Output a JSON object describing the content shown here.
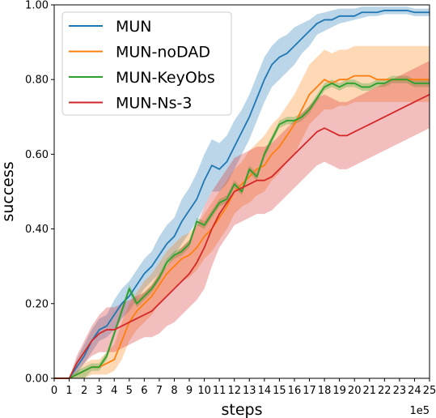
{
  "chart_data": {
    "type": "line",
    "xlabel": "steps",
    "ylabel": "success",
    "x_scale_label": "1e5",
    "xlim": [
      0,
      25
    ],
    "ylim": [
      0,
      1.0
    ],
    "x_ticks": [
      0,
      1,
      2,
      3,
      4,
      5,
      6,
      7,
      8,
      9,
      10,
      11,
      12,
      13,
      14,
      15,
      16,
      17,
      18,
      19,
      20,
      21,
      22,
      23,
      24,
      25
    ],
    "y_ticks": [
      0.0,
      0.2,
      0.4,
      0.6,
      0.8,
      1.0
    ],
    "y_tick_labels": [
      "0.00",
      "0.20",
      "0.40",
      "0.60",
      "0.80",
      "1.00"
    ],
    "grid": false,
    "legend_position": "top-left",
    "x": [
      0,
      0.5,
      1,
      1.5,
      2,
      2.5,
      3,
      3.5,
      4,
      4.5,
      5,
      5.5,
      6,
      6.5,
      7,
      7.5,
      8,
      8.5,
      9,
      9.5,
      10,
      10.5,
      11,
      11.5,
      12,
      12.5,
      13,
      13.5,
      14,
      14.5,
      15,
      15.5,
      16,
      16.5,
      17,
      17.5,
      18,
      18.5,
      19,
      19.5,
      20,
      20.5,
      21,
      21.5,
      22,
      22.5,
      23,
      23.5,
      24,
      24.5,
      25
    ],
    "series": [
      {
        "name": "MUN",
        "color": "#1f77b4",
        "values": [
          0,
          0,
          0,
          0.03,
          0.06,
          0.1,
          0.13,
          0.14,
          0.17,
          0.2,
          0.22,
          0.25,
          0.28,
          0.3,
          0.33,
          0.36,
          0.38,
          0.42,
          0.45,
          0.48,
          0.53,
          0.57,
          0.56,
          0.58,
          0.62,
          0.66,
          0.7,
          0.75,
          0.8,
          0.84,
          0.86,
          0.87,
          0.89,
          0.91,
          0.93,
          0.95,
          0.96,
          0.96,
          0.97,
          0.97,
          0.97,
          0.98,
          0.98,
          0.98,
          0.985,
          0.985,
          0.985,
          0.985,
          0.98,
          0.98,
          0.98
        ],
        "lower": [
          0,
          0,
          0,
          0.01,
          0.04,
          0.07,
          0.1,
          0.11,
          0.13,
          0.16,
          0.18,
          0.21,
          0.24,
          0.26,
          0.28,
          0.31,
          0.33,
          0.36,
          0.39,
          0.42,
          0.46,
          0.5,
          0.5,
          0.52,
          0.56,
          0.6,
          0.64,
          0.69,
          0.74,
          0.78,
          0.8,
          0.82,
          0.84,
          0.87,
          0.89,
          0.92,
          0.93,
          0.94,
          0.95,
          0.955,
          0.96,
          0.965,
          0.97,
          0.97,
          0.975,
          0.975,
          0.975,
          0.975,
          0.97,
          0.97,
          0.97
        ],
        "upper": [
          0,
          0,
          0,
          0.05,
          0.09,
          0.13,
          0.16,
          0.17,
          0.21,
          0.24,
          0.26,
          0.29,
          0.32,
          0.34,
          0.38,
          0.41,
          0.43,
          0.48,
          0.51,
          0.55,
          0.6,
          0.64,
          0.63,
          0.65,
          0.69,
          0.72,
          0.76,
          0.81,
          0.86,
          0.89,
          0.91,
          0.92,
          0.94,
          0.95,
          0.96,
          0.975,
          0.98,
          0.985,
          0.99,
          0.99,
          0.99,
          0.995,
          0.995,
          0.995,
          0.995,
          0.995,
          0.995,
          0.995,
          0.99,
          0.99,
          0.99
        ]
      },
      {
        "name": "MUN-noDAD",
        "color": "#ff7f0e",
        "values": [
          0,
          0,
          0,
          0.01,
          0.02,
          0.03,
          0.03,
          0.04,
          0.05,
          0.1,
          0.15,
          0.18,
          0.2,
          0.22,
          0.25,
          0.28,
          0.3,
          0.32,
          0.33,
          0.35,
          0.38,
          0.4,
          0.43,
          0.46,
          0.5,
          0.52,
          0.54,
          0.56,
          0.57,
          0.6,
          0.62,
          0.65,
          0.68,
          0.72,
          0.76,
          0.78,
          0.8,
          0.79,
          0.8,
          0.8,
          0.81,
          0.81,
          0.81,
          0.8,
          0.8,
          0.8,
          0.8,
          0.8,
          0.8,
          0.8,
          0.8
        ],
        "lower": [
          0,
          0,
          0,
          0,
          0,
          0.01,
          0.01,
          0.01,
          0.02,
          0.05,
          0.1,
          0.13,
          0.15,
          0.17,
          0.2,
          0.22,
          0.24,
          0.26,
          0.27,
          0.29,
          0.32,
          0.34,
          0.37,
          0.4,
          0.44,
          0.46,
          0.47,
          0.49,
          0.5,
          0.53,
          0.55,
          0.58,
          0.6,
          0.64,
          0.68,
          0.7,
          0.72,
          0.72,
          0.73,
          0.73,
          0.74,
          0.74,
          0.74,
          0.74,
          0.74,
          0.74,
          0.74,
          0.74,
          0.74,
          0.74,
          0.74
        ],
        "upper": [
          0,
          0,
          0,
          0.02,
          0.04,
          0.05,
          0.05,
          0.07,
          0.09,
          0.15,
          0.2,
          0.23,
          0.26,
          0.28,
          0.31,
          0.34,
          0.36,
          0.38,
          0.39,
          0.41,
          0.44,
          0.47,
          0.5,
          0.53,
          0.56,
          0.58,
          0.61,
          0.63,
          0.65,
          0.68,
          0.7,
          0.73,
          0.76,
          0.8,
          0.84,
          0.86,
          0.88,
          0.87,
          0.88,
          0.88,
          0.89,
          0.89,
          0.89,
          0.89,
          0.89,
          0.89,
          0.89,
          0.89,
          0.89,
          0.89,
          0.89
        ]
      },
      {
        "name": "MUN-KeyObs",
        "color": "#2ca02c",
        "values": [
          0,
          0,
          0,
          0.01,
          0.02,
          0.03,
          0.03,
          0.06,
          0.12,
          0.18,
          0.24,
          0.2,
          0.22,
          0.24,
          0.27,
          0.31,
          0.33,
          0.34,
          0.36,
          0.42,
          0.41,
          0.44,
          0.47,
          0.48,
          0.52,
          0.5,
          0.56,
          0.54,
          0.6,
          0.64,
          0.68,
          0.69,
          0.69,
          0.7,
          0.72,
          0.75,
          0.78,
          0.79,
          0.78,
          0.79,
          0.79,
          0.78,
          0.78,
          0.79,
          0.79,
          0.8,
          0.8,
          0.8,
          0.79,
          0.79,
          0.79
        ],
        "lower": [
          0,
          0,
          0,
          0,
          0,
          0.02,
          0.02,
          0.05,
          0.11,
          0.17,
          0.23,
          0.19,
          0.21,
          0.23,
          0.26,
          0.3,
          0.32,
          0.33,
          0.35,
          0.41,
          0.4,
          0.43,
          0.46,
          0.47,
          0.51,
          0.49,
          0.55,
          0.53,
          0.59,
          0.63,
          0.67,
          0.68,
          0.68,
          0.69,
          0.71,
          0.74,
          0.77,
          0.78,
          0.77,
          0.78,
          0.78,
          0.77,
          0.77,
          0.78,
          0.78,
          0.79,
          0.79,
          0.79,
          0.78,
          0.78,
          0.78
        ],
        "upper": [
          0,
          0,
          0,
          0.02,
          0.03,
          0.04,
          0.04,
          0.07,
          0.13,
          0.19,
          0.25,
          0.21,
          0.23,
          0.25,
          0.28,
          0.32,
          0.34,
          0.35,
          0.37,
          0.43,
          0.42,
          0.45,
          0.48,
          0.49,
          0.53,
          0.51,
          0.57,
          0.55,
          0.61,
          0.65,
          0.69,
          0.7,
          0.7,
          0.71,
          0.73,
          0.76,
          0.79,
          0.8,
          0.79,
          0.8,
          0.8,
          0.79,
          0.79,
          0.8,
          0.8,
          0.81,
          0.81,
          0.81,
          0.8,
          0.8,
          0.8
        ]
      },
      {
        "name": "MUN-Ns-3",
        "color": "#d62728",
        "values": [
          0,
          0,
          0,
          0.04,
          0.07,
          0.1,
          0.12,
          0.13,
          0.13,
          0.14,
          0.15,
          0.16,
          0.17,
          0.18,
          0.2,
          0.22,
          0.24,
          0.26,
          0.28,
          0.31,
          0.35,
          0.4,
          0.44,
          0.47,
          0.5,
          0.51,
          0.52,
          0.53,
          0.53,
          0.54,
          0.56,
          0.58,
          0.6,
          0.62,
          0.64,
          0.66,
          0.67,
          0.66,
          0.65,
          0.65,
          0.66,
          0.67,
          0.68,
          0.69,
          0.7,
          0.71,
          0.72,
          0.73,
          0.74,
          0.75,
          0.76
        ],
        "lower": [
          0,
          0,
          0,
          0.02,
          0.04,
          0.06,
          0.07,
          0.07,
          0.07,
          0.08,
          0.09,
          0.1,
          0.11,
          0.11,
          0.12,
          0.14,
          0.15,
          0.17,
          0.19,
          0.21,
          0.24,
          0.3,
          0.35,
          0.38,
          0.41,
          0.42,
          0.43,
          0.44,
          0.44,
          0.45,
          0.47,
          0.49,
          0.51,
          0.53,
          0.55,
          0.57,
          0.58,
          0.57,
          0.56,
          0.56,
          0.57,
          0.58,
          0.59,
          0.6,
          0.61,
          0.62,
          0.63,
          0.64,
          0.65,
          0.66,
          0.67
        ],
        "upper": [
          0,
          0,
          0,
          0.06,
          0.1,
          0.14,
          0.17,
          0.19,
          0.19,
          0.2,
          0.21,
          0.22,
          0.23,
          0.25,
          0.28,
          0.3,
          0.33,
          0.35,
          0.37,
          0.41,
          0.46,
          0.5,
          0.53,
          0.56,
          0.59,
          0.6,
          0.61,
          0.62,
          0.62,
          0.63,
          0.65,
          0.67,
          0.69,
          0.71,
          0.73,
          0.75,
          0.76,
          0.75,
          0.74,
          0.74,
          0.75,
          0.76,
          0.77,
          0.78,
          0.79,
          0.8,
          0.81,
          0.82,
          0.83,
          0.84,
          0.85
        ]
      }
    ]
  }
}
